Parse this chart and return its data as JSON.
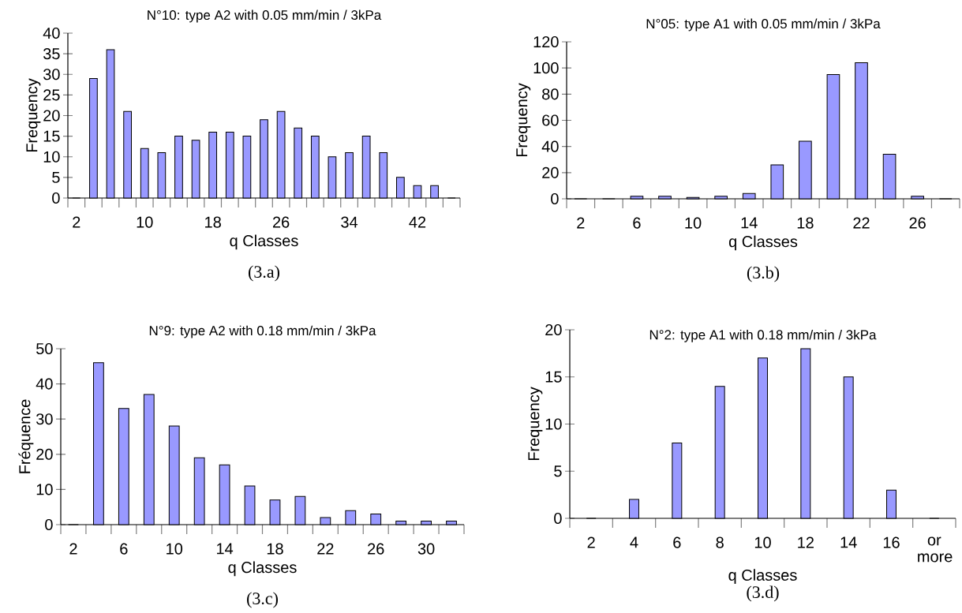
{
  "chart_data": [
    {
      "type": "bar",
      "title": "N°10: type A2 with 0.05 mm/min / 3kPa",
      "xlabel": "q Classes",
      "ylabel": "Frequency",
      "color": "#9999ff",
      "categories": [
        "2",
        null,
        null,
        null,
        "10",
        null,
        null,
        null,
        "18",
        null,
        null,
        null,
        "26",
        null,
        null,
        null,
        "34",
        null,
        null,
        null,
        "42",
        null,
        null
      ],
      "values": [
        0,
        29,
        36,
        21,
        12,
        11,
        15,
        14,
        16,
        16,
        15,
        19,
        21,
        17,
        15,
        10,
        11,
        15,
        11,
        5,
        3,
        3,
        0
      ],
      "ylim": [
        0,
        40
      ],
      "yticks": [
        0,
        5,
        10,
        15,
        20,
        25,
        30,
        35,
        40
      ],
      "annotations": [
        "(3.a)"
      ]
    },
    {
      "type": "bar",
      "title": "N°05: type A1 with 0.05 mm/min / 3kPa",
      "xlabel": "q Classes",
      "ylabel": "Frequency",
      "color": "#9999ff",
      "categories": [
        "2",
        null,
        "6",
        null,
        "10",
        null,
        "14",
        null,
        "18",
        null,
        "22",
        null,
        "26",
        null
      ],
      "values": [
        0,
        0,
        2,
        2,
        1,
        2,
        4,
        26,
        44,
        95,
        104,
        34,
        2,
        0
      ],
      "ylim": [
        0,
        120
      ],
      "yticks": [
        0,
        20,
        40,
        60,
        80,
        100,
        120
      ],
      "annotations": [
        "(3.b)"
      ]
    },
    {
      "type": "bar",
      "title": "N°9: type A2 with 0.18 mm/min / 3kPa",
      "xlabel": "q Classes",
      "ylabel": "Fréquence",
      "color": "#9999ff",
      "categories": [
        "2",
        null,
        "6",
        null,
        "10",
        null,
        "14",
        null,
        "18",
        null,
        "22",
        null,
        "26",
        null,
        "30",
        null
      ],
      "values": [
        0,
        46,
        33,
        37,
        28,
        19,
        17,
        11,
        7,
        8,
        2,
        4,
        3,
        1,
        1,
        1
      ],
      "ylim": [
        0,
        50
      ],
      "yticks": [
        0,
        10,
        20,
        30,
        40,
        50
      ],
      "annotations": [
        "(3.c)"
      ]
    },
    {
      "type": "bar",
      "title": "N°2: type A1 with 0.18 mm/min / 3kPa",
      "xlabel": "q Classes",
      "ylabel": "Frequency",
      "color": "#9999ff",
      "categories": [
        "2",
        "4",
        "6",
        "8",
        "10",
        "12",
        "14",
        "16",
        "or more"
      ],
      "values": [
        0,
        2,
        8,
        14,
        17,
        18,
        15,
        3,
        0
      ],
      "ylim": [
        0,
        20
      ],
      "yticks": [
        0,
        5,
        10,
        15,
        20
      ],
      "annotations": [
        "(3.d)"
      ]
    }
  ]
}
